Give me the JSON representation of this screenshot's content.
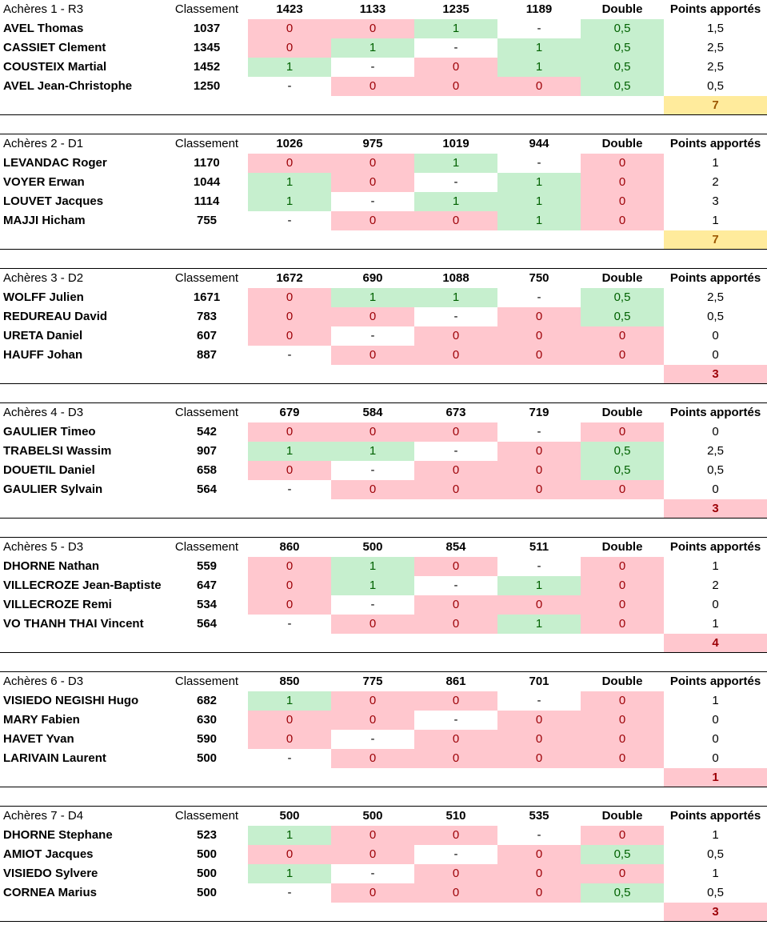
{
  "colors": {
    "win_bg": "#c6efce",
    "win_text": "#006100",
    "loss_bg": "#ffc7ce",
    "loss_text": "#9c0006",
    "total_yellow_bg": "#ffeb9c",
    "total_yellow_text": "#9c5700"
  },
  "teams": [
    {
      "name": "Achères 1 - R3",
      "classement_label": "Classement",
      "opponents": [
        "1423",
        "1133",
        "1235",
        "1189"
      ],
      "double_label": "Double",
      "points_label": "Points apportés",
      "players": [
        {
          "name": "AVEL Thomas",
          "rank": "1037",
          "results": [
            "0",
            "0",
            "1",
            "-"
          ],
          "double": "0,5",
          "points": "1,5"
        },
        {
          "name": "CASSIET Clement",
          "rank": "1345",
          "results": [
            "0",
            "1",
            "-",
            "1"
          ],
          "double": "0,5",
          "points": "2,5"
        },
        {
          "name": "COUSTEIX Martial",
          "rank": "1452",
          "results": [
            "1",
            "-",
            "0",
            "1"
          ],
          "double": "0,5",
          "points": "2,5"
        },
        {
          "name": "AVEL Jean-Christophe",
          "rank": "1250",
          "results": [
            "-",
            "0",
            "0",
            "0"
          ],
          "double": "0,5",
          "points": "0,5"
        }
      ],
      "total": "7",
      "total_style": "yellow"
    },
    {
      "name": "Achères 2 - D1",
      "classement_label": "Classement",
      "opponents": [
        "1026",
        "975",
        "1019",
        "944"
      ],
      "double_label": "Double",
      "points_label": "Points apportés",
      "players": [
        {
          "name": "LEVANDAC Roger",
          "rank": "1170",
          "results": [
            "0",
            "0",
            "1",
            "-"
          ],
          "double": "0",
          "points": "1"
        },
        {
          "name": "VOYER Erwan",
          "rank": "1044",
          "results": [
            "1",
            "0",
            "-",
            "1"
          ],
          "double": "0",
          "points": "2"
        },
        {
          "name": "LOUVET Jacques",
          "rank": "1114",
          "results": [
            "1",
            "-",
            "1",
            "1"
          ],
          "double": "0",
          "points": "3"
        },
        {
          "name": "MAJJI Hicham",
          "rank": "755",
          "results": [
            "-",
            "0",
            "0",
            "1"
          ],
          "double": "0",
          "points": "1"
        }
      ],
      "total": "7",
      "total_style": "yellow"
    },
    {
      "name": "Achères 3 - D2",
      "classement_label": "Classement",
      "opponents": [
        "1672",
        "690",
        "1088",
        "750"
      ],
      "double_label": "Double",
      "points_label": "Points apportés",
      "players": [
        {
          "name": "WOLFF Julien",
          "rank": "1671",
          "results": [
            "0",
            "1",
            "1",
            "-"
          ],
          "double": "0,5",
          "points": "2,5"
        },
        {
          "name": "REDUREAU David",
          "rank": "783",
          "results": [
            "0",
            "0",
            "-",
            "0"
          ],
          "double": "0,5",
          "points": "0,5"
        },
        {
          "name": "URETA Daniel",
          "rank": "607",
          "results": [
            "0",
            "-",
            "0",
            "0"
          ],
          "double": "0",
          "points": "0"
        },
        {
          "name": "HAUFF Johan",
          "rank": "887",
          "results": [
            "-",
            "0",
            "0",
            "0"
          ],
          "double": "0",
          "points": "0"
        }
      ],
      "total": "3",
      "total_style": "red"
    },
    {
      "name": "Achères 4 - D3",
      "classement_label": "Classement",
      "opponents": [
        "679",
        "584",
        "673",
        "719"
      ],
      "double_label": "Double",
      "points_label": "Points apportés",
      "players": [
        {
          "name": "GAULIER Timeo",
          "rank": "542",
          "results": [
            "0",
            "0",
            "0",
            "-"
          ],
          "double": "0",
          "points": "0"
        },
        {
          "name": "TRABELSI Wassim",
          "rank": "907",
          "results": [
            "1",
            "1",
            "-",
            "0"
          ],
          "double": "0,5",
          "points": "2,5"
        },
        {
          "name": "DOUETIL Daniel",
          "rank": "658",
          "results": [
            "0",
            "-",
            "0",
            "0"
          ],
          "double": "0,5",
          "points": "0,5"
        },
        {
          "name": "GAULIER Sylvain",
          "rank": "564",
          "results": [
            "-",
            "0",
            "0",
            "0"
          ],
          "double": "0",
          "points": "0"
        }
      ],
      "total": "3",
      "total_style": "red"
    },
    {
      "name": "Achères 5 - D3",
      "classement_label": "Classement",
      "opponents": [
        "860",
        "500",
        "854",
        "511"
      ],
      "double_label": "Double",
      "points_label": "Points apportés",
      "players": [
        {
          "name": "DHORNE Nathan",
          "rank": "559",
          "results": [
            "0",
            "1",
            "0",
            "-"
          ],
          "double": "0",
          "points": "1"
        },
        {
          "name": "VILLECROZE Jean-Baptiste",
          "rank": "647",
          "results": [
            "0",
            "1",
            "-",
            "1"
          ],
          "double": "0",
          "points": "2"
        },
        {
          "name": "VILLECROZE Remi",
          "rank": "534",
          "results": [
            "0",
            "-",
            "0",
            "0"
          ],
          "double": "0",
          "points": "0"
        },
        {
          "name": "VO THANH THAI Vincent",
          "rank": "564",
          "results": [
            "-",
            "0",
            "0",
            "1"
          ],
          "double": "0",
          "points": "1"
        }
      ],
      "total": "4",
      "total_style": "red"
    },
    {
      "name": "Achères 6 - D3",
      "classement_label": "Classement",
      "opponents": [
        "850",
        "775",
        "861",
        "701"
      ],
      "double_label": "Double",
      "points_label": "Points apportés",
      "players": [
        {
          "name": "VISIEDO NEGISHI Hugo",
          "rank": "682",
          "results": [
            "1",
            "0",
            "0",
            "-"
          ],
          "double": "0",
          "points": "1"
        },
        {
          "name": "MARY Fabien",
          "rank": "630",
          "results": [
            "0",
            "0",
            "-",
            "0"
          ],
          "double": "0",
          "points": "0"
        },
        {
          "name": "HAVET Yvan",
          "rank": "590",
          "results": [
            "0",
            "-",
            "0",
            "0"
          ],
          "double": "0",
          "points": "0"
        },
        {
          "name": "LARIVAIN Laurent",
          "rank": "500",
          "results": [
            "-",
            "0",
            "0",
            "0"
          ],
          "double": "0",
          "points": "0"
        }
      ],
      "total": "1",
      "total_style": "red"
    },
    {
      "name": "Achères 7 - D4",
      "classement_label": "Classement",
      "opponents": [
        "500",
        "500",
        "510",
        "535"
      ],
      "double_label": "Double",
      "points_label": "Points apportés",
      "players": [
        {
          "name": "DHORNE Stephane",
          "rank": "523",
          "results": [
            "1",
            "0",
            "0",
            "-"
          ],
          "double": "0",
          "points": "1"
        },
        {
          "name": "AMIOT Jacques",
          "rank": "500",
          "results": [
            "0",
            "0",
            "-",
            "0"
          ],
          "double": "0,5",
          "points": "0,5"
        },
        {
          "name": "VISIEDO Sylvere",
          "rank": "500",
          "results": [
            "1",
            "-",
            "0",
            "0"
          ],
          "double": "0",
          "points": "1"
        },
        {
          "name": "CORNEA Marius",
          "rank": "500",
          "results": [
            "-",
            "0",
            "0",
            "0"
          ],
          "double": "0,5",
          "points": "0,5"
        }
      ],
      "total": "3",
      "total_style": "red"
    }
  ]
}
